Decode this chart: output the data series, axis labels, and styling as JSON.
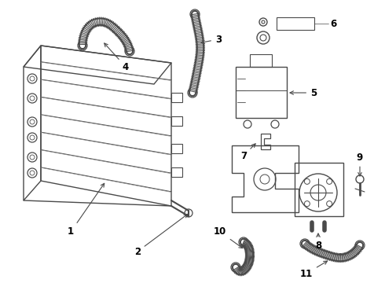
{
  "background_color": "#ffffff",
  "line_color": "#4a4a4a",
  "fig_width": 4.9,
  "fig_height": 3.6,
  "dpi": 100
}
